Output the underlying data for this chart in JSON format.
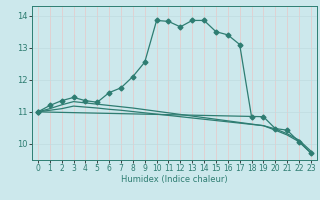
{
  "xlabel": "Humidex (Indice chaleur)",
  "bg_color": "#cce8ec",
  "grid_color_v": "#e8c8c8",
  "grid_color_h": "#c0dce0",
  "line_color": "#2e7d72",
  "xlim": [
    -0.5,
    23.5
  ],
  "ylim": [
    9.5,
    14.3
  ],
  "xticks": [
    0,
    1,
    2,
    3,
    4,
    5,
    6,
    7,
    8,
    9,
    10,
    11,
    12,
    13,
    14,
    15,
    16,
    17,
    18,
    19,
    20,
    21,
    22,
    23
  ],
  "yticks": [
    10,
    11,
    12,
    13,
    14
  ],
  "line1_x": [
    0,
    1,
    2,
    3,
    4,
    5,
    6,
    7,
    8,
    9,
    10,
    11,
    12,
    13,
    14,
    15,
    16,
    17,
    18
  ],
  "line1_y": [
    11.0,
    11.2,
    11.35,
    11.45,
    11.35,
    11.3,
    11.6,
    11.75,
    12.1,
    12.55,
    13.85,
    13.82,
    13.65,
    13.85,
    13.85,
    13.5,
    13.4,
    13.1,
    10.85
  ],
  "line2_x": [
    0,
    1,
    2,
    3,
    4,
    5,
    6,
    7,
    8,
    9,
    10,
    11,
    12,
    13,
    14,
    15,
    16,
    17,
    18,
    19,
    20,
    21,
    22,
    23
  ],
  "line2_y": [
    11.0,
    11.1,
    11.22,
    11.32,
    11.28,
    11.24,
    11.2,
    11.16,
    11.12,
    11.07,
    11.02,
    10.97,
    10.92,
    10.87,
    10.82,
    10.77,
    10.72,
    10.67,
    10.62,
    10.57,
    10.47,
    10.32,
    10.12,
    9.78
  ],
  "line3_x": [
    0,
    1,
    2,
    3,
    4,
    5,
    6,
    7,
    8,
    9,
    10,
    11,
    12,
    13,
    14,
    15,
    16,
    17,
    18,
    19,
    20,
    21,
    22,
    23
  ],
  "line3_y": [
    11.0,
    11.05,
    11.1,
    11.18,
    11.15,
    11.12,
    11.08,
    11.05,
    11.01,
    10.97,
    10.93,
    10.89,
    10.85,
    10.81,
    10.77,
    10.73,
    10.69,
    10.65,
    10.61,
    10.57,
    10.43,
    10.28,
    10.07,
    9.72
  ],
  "line4_x": [
    0,
    19,
    20,
    21,
    22,
    23
  ],
  "line4_y": [
    11.0,
    10.85,
    10.48,
    10.43,
    10.07,
    9.72
  ],
  "xlabel_fontsize": 6.0,
  "tick_fontsize": 5.5
}
